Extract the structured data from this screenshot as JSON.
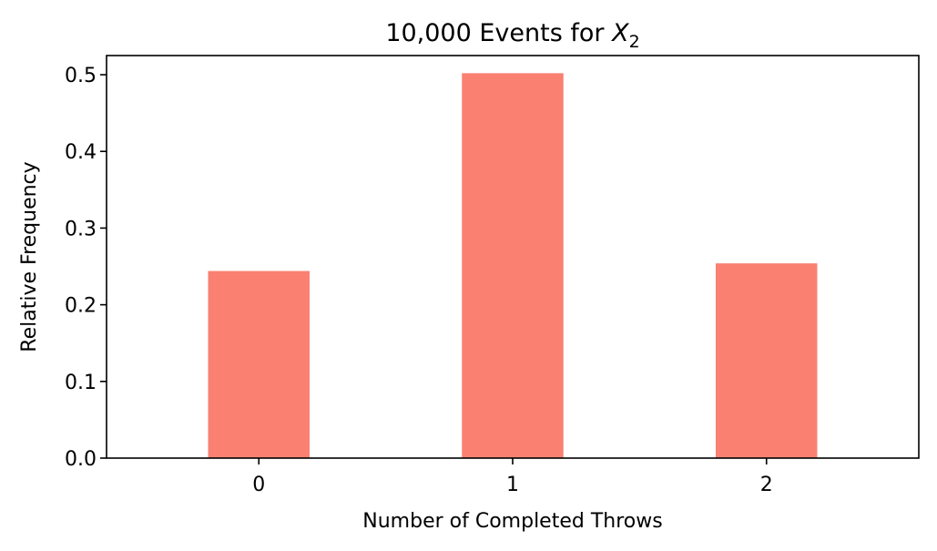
{
  "chart_data": {
    "type": "bar",
    "title_main": "10,000 Events for ",
    "title_var": "X",
    "title_sub": "2",
    "xlabel": "Number of Completed Throws",
    "ylabel": "Relative Frequency",
    "categories": [
      "0",
      "1",
      "2"
    ],
    "values": [
      0.244,
      0.502,
      0.254
    ],
    "ylim": [
      0,
      0.525
    ],
    "yticks": [
      "0.0",
      "0.1",
      "0.2",
      "0.3",
      "0.4",
      "0.5"
    ],
    "bar_color": "#fa8072",
    "grid": false,
    "legend": "none"
  }
}
